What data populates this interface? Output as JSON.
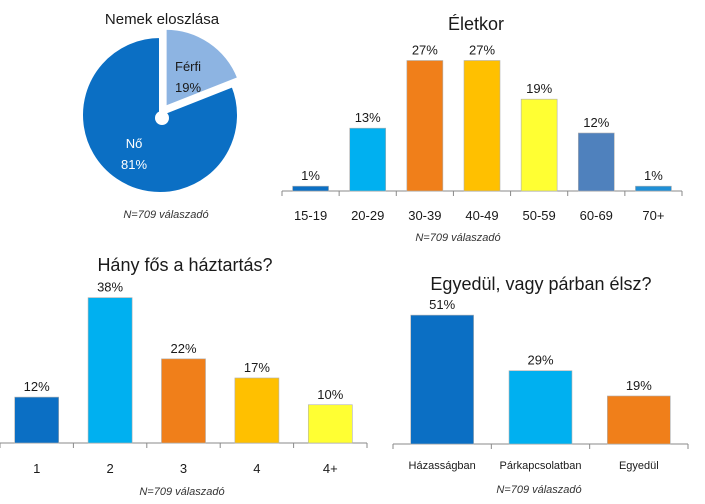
{
  "chart_data": [
    {
      "id": "gender",
      "type": "pie",
      "title": "Nemek eloszlása",
      "slices": [
        {
          "label": "Férfi",
          "value": 19,
          "display": "19%",
          "color": "#8db4e2"
        },
        {
          "label": "Nő",
          "value": 81,
          "display": "81%",
          "color": "#0b6fc4"
        }
      ],
      "note": "N=709 válaszadó"
    },
    {
      "id": "age",
      "type": "bar",
      "title": "Életkor",
      "categories": [
        "15-19",
        "20-29",
        "30-39",
        "40-49",
        "50-59",
        "60-69",
        "70+"
      ],
      "values": [
        1,
        13,
        27,
        27,
        19,
        12,
        1
      ],
      "labels": [
        "1%",
        "13%",
        "27%",
        "27%",
        "19%",
        "12%",
        "1%"
      ],
      "colors": [
        "#0b6fc4",
        "#00b0f0",
        "#f07f1a",
        "#ffc000",
        "#ffff33",
        "#4f81bd",
        "#1f8fd6"
      ],
      "ylim": [
        0,
        30
      ],
      "note": "N=709 válaszadó"
    },
    {
      "id": "household",
      "type": "bar",
      "title": "Hány fős a háztartás?",
      "categories": [
        "1",
        "2",
        "3",
        "4",
        "4+"
      ],
      "values": [
        12,
        38,
        22,
        17,
        10
      ],
      "labels": [
        "12%",
        "38%",
        "22%",
        "17%",
        "10%"
      ],
      "colors": [
        "#0b6fc4",
        "#00b0f0",
        "#f07f1a",
        "#ffc000",
        "#ffff33"
      ],
      "ylim": [
        0,
        40
      ],
      "note": "N=709 válaszadó"
    },
    {
      "id": "relationship",
      "type": "bar",
      "title": "Egyedül, vagy párban élsz?",
      "categories": [
        "Házasságban",
        "Párkapcsolatban",
        "Egyedül"
      ],
      "values": [
        51,
        29,
        19
      ],
      "labels": [
        "51%",
        "29%",
        "19%"
      ],
      "colors": [
        "#0b6fc4",
        "#00b0f0",
        "#f07f1a"
      ],
      "ylim": [
        0,
        55
      ],
      "note": "N=709 válaszadó"
    }
  ]
}
